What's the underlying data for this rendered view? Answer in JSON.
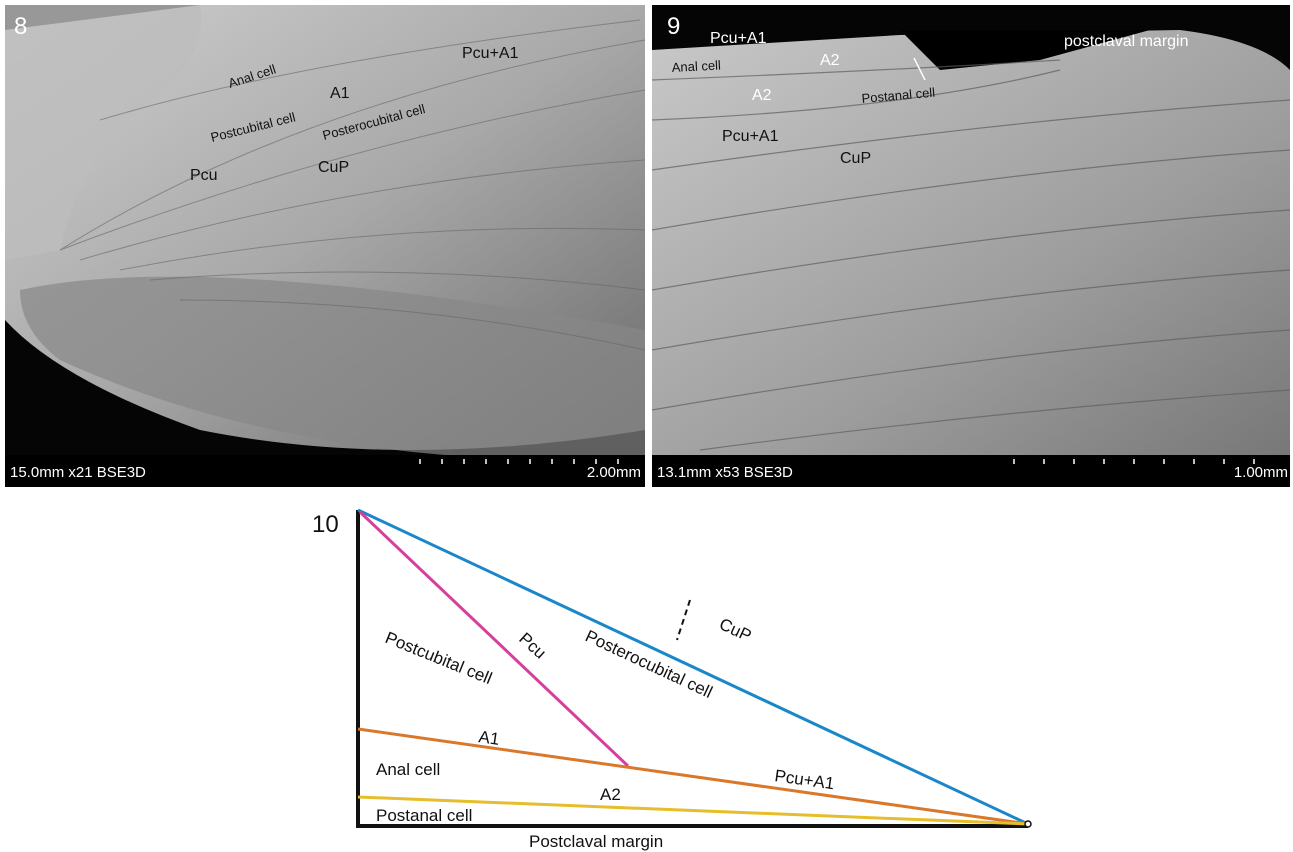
{
  "figure": {
    "panel_8": {
      "number": "8",
      "labels": [
        "Anal cell",
        "A1",
        "Pcu+A1",
        "Postcubital cell",
        "Posterocubital cell",
        "Pcu",
        "CuP"
      ],
      "scale_info": "15.0mm x21 BSE3D",
      "scale_bar": "2.00mm"
    },
    "panel_9": {
      "number": "9",
      "labels": [
        "Pcu+A1",
        "postclaval margin",
        "Anal cell",
        "A2",
        "A2",
        "Postanal cell",
        "Pcu+A1",
        "CuP"
      ],
      "scale_info": "13.1mm x53 BSE3D",
      "scale_bar": "1.00mm"
    },
    "panel_10": {
      "number": "10",
      "labels": [
        "Pcu",
        "CuP",
        "Postcubital cell",
        "Posterocubital cell",
        "A1",
        "Anal cell",
        "Pcu+A1",
        "A2",
        "Postanal cell",
        "Postclaval margin"
      ]
    }
  }
}
